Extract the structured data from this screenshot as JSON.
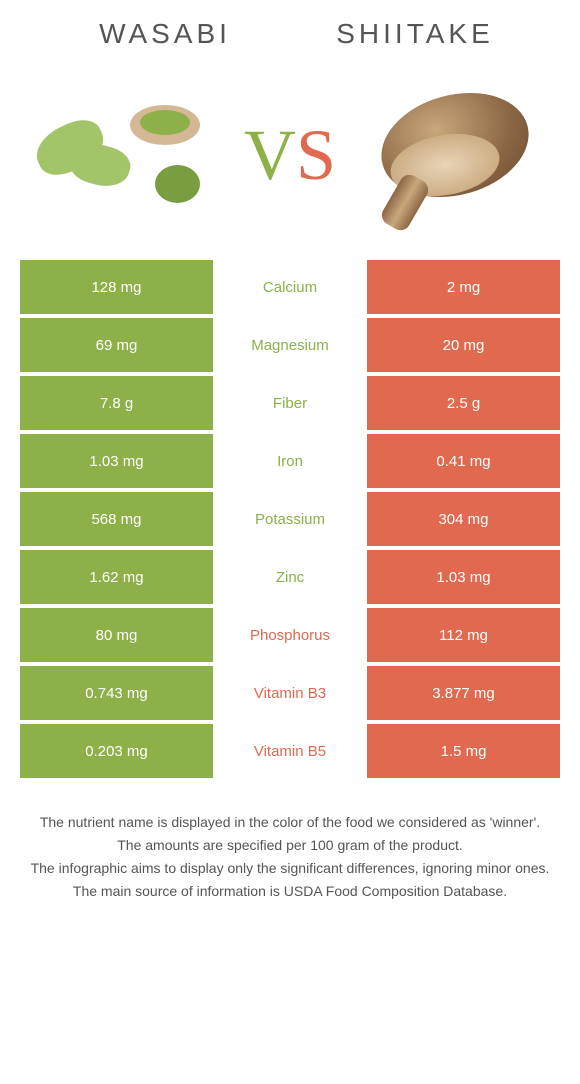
{
  "header": {
    "food1_title": "WASABI",
    "food2_title": "SHIITAKE",
    "vs_v": "V",
    "vs_s": "S"
  },
  "colors": {
    "food1_bg": "#8db048",
    "food2_bg": "#e0694f",
    "text_default": "#555555",
    "background": "#ffffff"
  },
  "table": {
    "rows": [
      {
        "left": "128 mg",
        "nutrient": "Calcium",
        "right": "2 mg",
        "winner": "left"
      },
      {
        "left": "69 mg",
        "nutrient": "Magnesium",
        "right": "20 mg",
        "winner": "left"
      },
      {
        "left": "7.8 g",
        "nutrient": "Fiber",
        "right": "2.5 g",
        "winner": "left"
      },
      {
        "left": "1.03 mg",
        "nutrient": "Iron",
        "right": "0.41 mg",
        "winner": "left"
      },
      {
        "left": "568 mg",
        "nutrient": "Potassium",
        "right": "304 mg",
        "winner": "left"
      },
      {
        "left": "1.62 mg",
        "nutrient": "Zinc",
        "right": "1.03 mg",
        "winner": "left"
      },
      {
        "left": "80 mg",
        "nutrient": "Phosphorus",
        "right": "112 mg",
        "winner": "right"
      },
      {
        "left": "0.743 mg",
        "nutrient": "Vitamin B3",
        "right": "3.877 mg",
        "winner": "right"
      },
      {
        "left": "0.203 mg",
        "nutrient": "Vitamin B5",
        "right": "1.5 mg",
        "winner": "right"
      }
    ]
  },
  "footer": {
    "line1": "The nutrient name is displayed in the color of the food we considered as 'winner'.",
    "line2": "The amounts are specified per 100 gram of the product.",
    "line3": "The infographic aims to display only the significant differences, ignoring minor ones.",
    "line4": "The main source of information is USDA Food Composition Database."
  }
}
